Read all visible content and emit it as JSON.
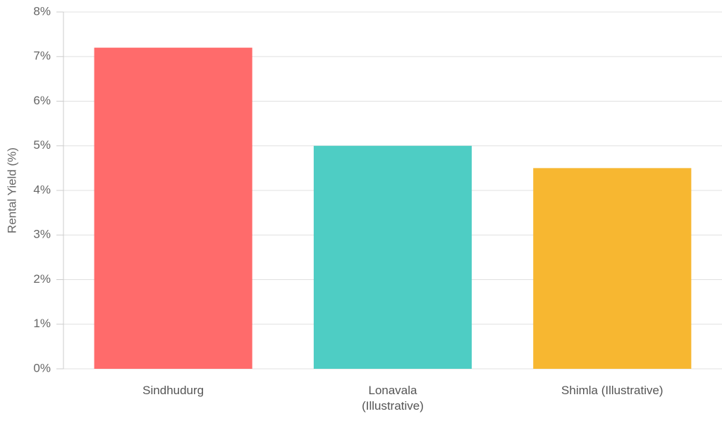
{
  "chart_data": {
    "type": "bar",
    "y_label": "Rental Yield (%)",
    "categories": [
      "Sindhudurg",
      "Lonavala (Illustrative)",
      "Shimla (Illustrative)"
    ],
    "values": [
      7.2,
      5.0,
      4.5
    ],
    "colors": [
      "#ff6b6b",
      "#4ecdc4",
      "#f7b731"
    ],
    "ylim": [
      0,
      8
    ],
    "yticks": [
      {
        "value": 0,
        "label": "0%"
      },
      {
        "value": 1,
        "label": "1%"
      },
      {
        "value": 2,
        "label": "2%"
      },
      {
        "value": 3,
        "label": "3%"
      },
      {
        "value": 4,
        "label": "4%"
      },
      {
        "value": 5,
        "label": "5%"
      },
      {
        "value": 6,
        "label": "6%"
      },
      {
        "value": 7,
        "label": "7%"
      },
      {
        "value": 8,
        "label": "8%"
      }
    ],
    "grid": true
  }
}
